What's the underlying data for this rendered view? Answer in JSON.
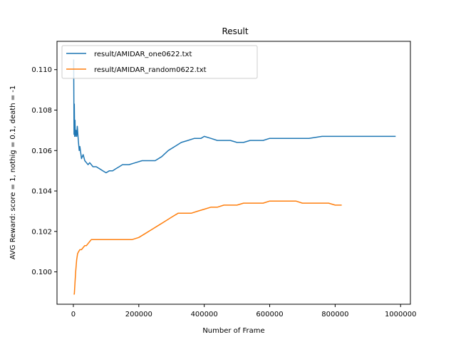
{
  "chart_data": {
    "type": "line",
    "title": "Result",
    "xlabel": "Number of Frame",
    "ylabel": "AVG Reward: score = 1, nothig = 0.1, death = -1",
    "xlim": [
      -50000,
      1030000
    ],
    "ylim": [
      0.0984,
      0.1114
    ],
    "xticks": [
      0,
      200000,
      400000,
      600000,
      800000,
      1000000
    ],
    "xtick_labels": [
      "0",
      "200000",
      "400000",
      "600000",
      "800000",
      "1000000"
    ],
    "yticks": [
      0.1,
      0.102,
      0.104,
      0.106,
      0.108,
      0.11
    ],
    "ytick_labels": [
      "0.100",
      "0.102",
      "0.104",
      "0.106",
      "0.108",
      "0.110"
    ],
    "grid": false,
    "legend": "top-left",
    "series": [
      {
        "name": "result/AMIDAR_one0622.txt",
        "color": "#1f77b4",
        "x": [
          1000,
          2000,
          3000,
          4000,
          5000,
          6000,
          8000,
          10000,
          12000,
          15000,
          18000,
          20000,
          25000,
          30000,
          35000,
          40000,
          45000,
          50000,
          60000,
          70000,
          80000,
          90000,
          100000,
          110000,
          120000,
          130000,
          140000,
          150000,
          170000,
          190000,
          210000,
          230000,
          250000,
          270000,
          290000,
          310000,
          330000,
          350000,
          370000,
          390000,
          400000,
          420000,
          440000,
          460000,
          480000,
          500000,
          520000,
          540000,
          560000,
          580000,
          600000,
          640000,
          680000,
          720000,
          760000,
          800000,
          840000,
          880000,
          920000,
          960000,
          985000
        ],
        "y": [
          0.1105,
          0.1068,
          0.1083,
          0.1067,
          0.1075,
          0.1067,
          0.107,
          0.1067,
          0.1072,
          0.1065,
          0.106,
          0.1062,
          0.1056,
          0.1058,
          0.1055,
          0.1054,
          0.1053,
          0.1054,
          0.1052,
          0.1052,
          0.1051,
          0.105,
          0.1049,
          0.105,
          0.105,
          0.1051,
          0.1052,
          0.1053,
          0.1053,
          0.1054,
          0.1055,
          0.1055,
          0.1055,
          0.1057,
          0.106,
          0.1062,
          0.1064,
          0.1065,
          0.1066,
          0.1066,
          0.1067,
          0.1066,
          0.1065,
          0.1065,
          0.1065,
          0.1064,
          0.1064,
          0.1065,
          0.1065,
          0.1065,
          0.1066,
          0.1066,
          0.1066,
          0.1066,
          0.1067,
          0.1067,
          0.1067,
          0.1067,
          0.1067,
          0.1067,
          0.1067
        ]
      },
      {
        "name": "result/AMIDAR_random0622.txt",
        "color": "#ff7f0e",
        "x": [
          1000,
          3000,
          5000,
          7000,
          10000,
          13000,
          16000,
          20000,
          25000,
          30000,
          35000,
          40000,
          45000,
          50000,
          55000,
          60000,
          70000,
          80000,
          90000,
          100000,
          120000,
          140000,
          160000,
          180000,
          200000,
          220000,
          240000,
          260000,
          280000,
          300000,
          320000,
          340000,
          360000,
          380000,
          400000,
          420000,
          440000,
          460000,
          480000,
          500000,
          520000,
          540000,
          560000,
          580000,
          600000,
          620000,
          640000,
          660000,
          680000,
          700000,
          720000,
          740000,
          760000,
          780000,
          800000,
          820000
        ],
        "y": [
          0.0989,
          0.0989,
          0.0995,
          0.1,
          0.1006,
          0.1009,
          0.101,
          0.1011,
          0.1011,
          0.1012,
          0.1013,
          0.1013,
          0.1014,
          0.1015,
          0.1016,
          0.1016,
          0.1016,
          0.1016,
          0.1016,
          0.1016,
          0.1016,
          0.1016,
          0.1016,
          0.1016,
          0.1017,
          0.1019,
          0.1021,
          0.1023,
          0.1025,
          0.1027,
          0.1029,
          0.1029,
          0.1029,
          0.103,
          0.1031,
          0.1032,
          0.1032,
          0.1033,
          0.1033,
          0.1033,
          0.1034,
          0.1034,
          0.1034,
          0.1034,
          0.1035,
          0.1035,
          0.1035,
          0.1035,
          0.1035,
          0.1034,
          0.1034,
          0.1034,
          0.1034,
          0.1034,
          0.1033,
          0.1033
        ]
      }
    ]
  }
}
